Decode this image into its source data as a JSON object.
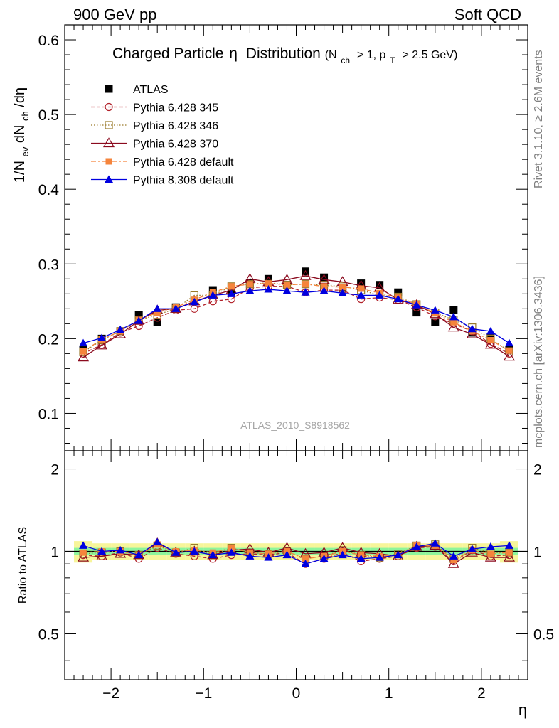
{
  "header": {
    "left": "900 GeV pp",
    "right": "Soft QCD"
  },
  "side_labels": {
    "rivet": "Rivet 3.1.10, ≥ 2.6M events",
    "mcplots": "mcplots.cern.ch [arXiv:1306.3436]"
  },
  "watermark": "ATLAS_2010_S8918562",
  "chart_data": [
    {
      "type": "line",
      "panel": "main",
      "title_main": "Charged Particle",
      "title_eta": "η",
      "title_rest": "Distribution",
      "title_cut_open": "(N",
      "title_cut_sub1": "ch",
      "title_cut_mid": "> 1, p",
      "title_cut_sub2": "T",
      "title_cut_end": "> 2.5 GeV)",
      "ylabel_parts": {
        "a": "1/N",
        "a_sub": "ev",
        "b": " dN",
        "b_sub": "ch",
        "c": "/dη"
      },
      "ylim": [
        0.05,
        0.62
      ],
      "yticks": [
        0.1,
        0.2,
        0.3,
        0.4,
        0.5,
        0.6
      ],
      "ytick_labels": [
        "0.1",
        "0.2",
        "0.3",
        "0.4",
        "0.5",
        "0.6"
      ],
      "legend_position": "top-left",
      "x": [
        -2.3,
        -2.1,
        -1.9,
        -1.7,
        -1.5,
        -1.3,
        -1.1,
        -0.9,
        -0.7,
        -0.5,
        -0.3,
        -0.1,
        0.1,
        0.3,
        0.5,
        0.7,
        0.9,
        1.1,
        1.3,
        1.5,
        1.7,
        1.9,
        2.1,
        2.3
      ],
      "series": [
        {
          "name": "ATLAS",
          "color": "#000000",
          "marker": "filled-square",
          "line": "none",
          "values": [
            0.185,
            0.2,
            0.21,
            0.232,
            0.222,
            0.242,
            0.25,
            0.265,
            0.262,
            0.275,
            0.28,
            0.272,
            0.29,
            0.282,
            0.268,
            0.274,
            0.272,
            0.262,
            0.235,
            0.222,
            0.238,
            0.208,
            0.202,
            0.185
          ]
        },
        {
          "name": "Pythia 6.428 345",
          "color": "#b2222b",
          "marker": "open-circle",
          "line": "dashed",
          "values": [
            0.18,
            0.192,
            0.208,
            0.217,
            0.228,
            0.238,
            0.24,
            0.25,
            0.253,
            0.268,
            0.27,
            0.27,
            0.262,
            0.265,
            0.265,
            0.253,
            0.255,
            0.252,
            0.242,
            0.23,
            0.22,
            0.21,
            0.193,
            0.18
          ]
        },
        {
          "name": "Pythia 6.428 346",
          "color": "#9a7a2a",
          "marker": "open-square",
          "line": "dotted",
          "values": [
            0.182,
            0.198,
            0.21,
            0.225,
            0.232,
            0.24,
            0.258,
            0.258,
            0.27,
            0.273,
            0.275,
            0.272,
            0.273,
            0.272,
            0.27,
            0.265,
            0.258,
            0.256,
            0.246,
            0.235,
            0.225,
            0.215,
            0.2,
            0.183
          ]
        },
        {
          "name": "Pythia 6.428 370",
          "color": "#8b0a1e",
          "marker": "open-triangle",
          "line": "solid",
          "values": [
            0.175,
            0.191,
            0.206,
            0.224,
            0.238,
            0.24,
            0.25,
            0.258,
            0.265,
            0.28,
            0.276,
            0.279,
            0.284,
            0.279,
            0.276,
            0.271,
            0.268,
            0.252,
            0.245,
            0.233,
            0.215,
            0.206,
            0.192,
            0.176
          ]
        },
        {
          "name": "Pythia 6.428 default",
          "color": "#f5843c",
          "marker": "filled-square-small",
          "line": "dashdot",
          "values": [
            0.183,
            0.199,
            0.21,
            0.225,
            0.235,
            0.242,
            0.252,
            0.262,
            0.27,
            0.273,
            0.274,
            0.272,
            0.273,
            0.27,
            0.269,
            0.267,
            0.261,
            0.255,
            0.246,
            0.234,
            0.222,
            0.21,
            0.198,
            0.184
          ]
        },
        {
          "name": "Pythia 8.308 default",
          "color": "#0000e0",
          "marker": "filled-triangle",
          "line": "solid",
          "values": [
            0.194,
            0.201,
            0.212,
            0.224,
            0.24,
            0.24,
            0.249,
            0.258,
            0.26,
            0.264,
            0.266,
            0.264,
            0.262,
            0.264,
            0.261,
            0.258,
            0.258,
            0.253,
            0.245,
            0.238,
            0.229,
            0.213,
            0.21,
            0.194
          ]
        }
      ]
    },
    {
      "type": "line",
      "panel": "ratio",
      "ylabel": "Ratio to ATLAS",
      "xlabel": "η",
      "ylim": [
        0.34,
        2.33
      ],
      "yticks": [
        0.5,
        1,
        2
      ],
      "ytick_labels": [
        "0.5",
        "1",
        "2"
      ],
      "xlim": [
        -2.5,
        2.5
      ],
      "xticks": [
        -2,
        -1,
        0,
        1,
        2
      ],
      "xtick_labels": [
        "−2",
        "−1",
        "0",
        "1",
        "2"
      ],
      "band_colors": {
        "inner": "#8ef59c",
        "outer": "#f7f59a"
      },
      "band_inner_halfwidth": 0.03,
      "band_outer_halfwidth": 0.07,
      "ratio_series": [
        {
          "name": "Pythia 6.428 345",
          "values": [
            0.97,
            0.96,
            0.99,
            0.94,
            1.03,
            0.98,
            0.96,
            0.94,
            0.97,
            0.98,
            0.97,
            0.99,
            0.9,
            0.94,
            0.99,
            0.92,
            0.94,
            0.96,
            1.03,
            1.04,
            0.92,
            1.01,
            0.96,
            0.97
          ]
        },
        {
          "name": "Pythia 6.428 346",
          "values": [
            0.98,
            0.99,
            1.0,
            0.97,
            1.05,
            0.99,
            1.03,
            0.97,
            1.03,
            0.99,
            0.98,
            1.0,
            0.94,
            0.96,
            1.01,
            0.97,
            0.95,
            0.98,
            1.05,
            1.06,
            0.94,
            1.03,
            0.99,
            0.99
          ]
        },
        {
          "name": "Pythia 6.428 370",
          "values": [
            0.95,
            0.96,
            0.98,
            0.97,
            1.07,
            0.99,
            1.0,
            0.97,
            1.01,
            1.02,
            0.99,
            1.03,
            0.98,
            0.99,
            1.03,
            0.99,
            0.98,
            0.96,
            1.04,
            1.05,
            0.9,
            0.99,
            0.95,
            0.95
          ]
        },
        {
          "name": "Pythia 6.428 default",
          "values": [
            0.99,
            1.0,
            1.0,
            0.97,
            1.06,
            1.0,
            1.01,
            0.99,
            1.03,
            0.99,
            0.98,
            1.0,
            0.94,
            0.96,
            1.0,
            0.97,
            0.96,
            0.97,
            1.05,
            1.05,
            0.93,
            1.01,
            0.98,
            0.99
          ]
        },
        {
          "name": "Pythia 8.308 default",
          "values": [
            1.05,
            1.0,
            1.01,
            0.97,
            1.08,
            0.99,
            1.0,
            0.97,
            0.99,
            0.96,
            0.95,
            0.97,
            0.9,
            0.94,
            0.97,
            0.94,
            0.95,
            0.97,
            1.04,
            1.07,
            0.96,
            1.02,
            1.04,
            1.05
          ]
        }
      ]
    }
  ]
}
